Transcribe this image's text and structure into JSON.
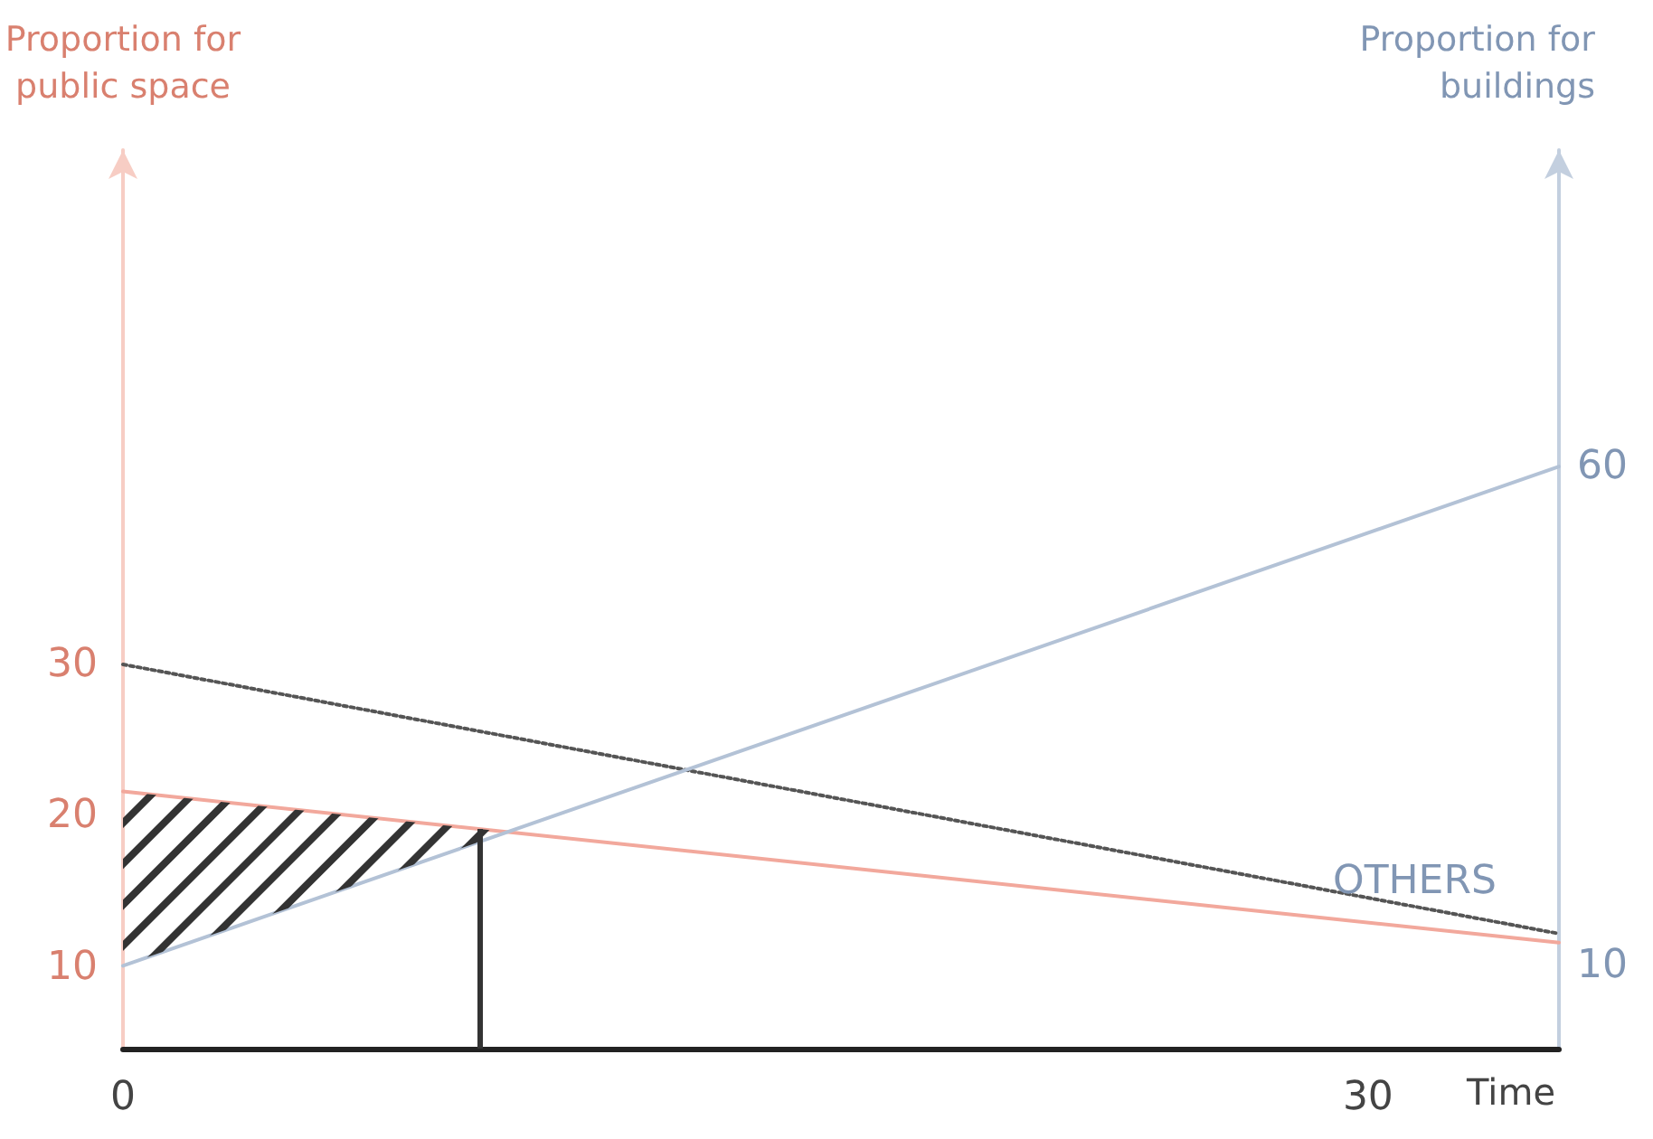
{
  "chart_data": {
    "type": "line",
    "ylabel": "Proportion for public space",
    "y2label": "Proportion for buildings",
    "xlabel": "Time",
    "xlim": [
      0,
      34.6
    ],
    "xticks": [
      0,
      30
    ],
    "ylim": [
      4.6,
      64
    ],
    "yticks": [
      10,
      20,
      30
    ],
    "y2lim": [
      1.7,
      91.7
    ],
    "y2ticks": [
      10,
      60
    ],
    "marker": "none",
    "grid": false,
    "legend": false,
    "x": [
      0,
      34.6
    ],
    "series": [
      {
        "color": "#f2a89c",
        "values": [
          21.6,
          11.6
        ],
        "line_style": "solid"
      },
      {
        "name": "OTHERS",
        "color": "#555555",
        "values": [
          30,
          12.2
        ],
        "line_style": "dotted"
      },
      {
        "color": "#b3c2d6",
        "values": [
          10,
          60
        ],
        "axis": "y2",
        "line_style": "solid"
      }
    ],
    "ref_lines": [
      {
        "axis": "x",
        "value": 8.6,
        "color": "#333333",
        "line_style": "solid"
      }
    ]
  }
}
